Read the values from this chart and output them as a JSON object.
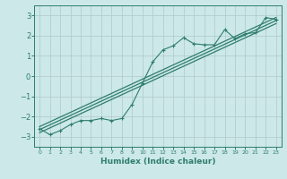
{
  "title": "",
  "xlabel": "Humidex (Indice chaleur)",
  "ylabel": "",
  "xlim": [
    -0.5,
    23.5
  ],
  "ylim": [
    -3.5,
    3.5
  ],
  "xticks": [
    0,
    1,
    2,
    3,
    4,
    5,
    6,
    7,
    8,
    9,
    10,
    11,
    12,
    13,
    14,
    15,
    16,
    17,
    18,
    19,
    20,
    21,
    22,
    23
  ],
  "yticks": [
    -3,
    -2,
    -1,
    0,
    1,
    2,
    3
  ],
  "background_color": "#cce8e8",
  "grid_color": "#b0c8c8",
  "line_color": "#2e7d6e",
  "line1_x": [
    0,
    1,
    2,
    3,
    4,
    5,
    6,
    7,
    8,
    9,
    10,
    11,
    12,
    13,
    14,
    15,
    16,
    17,
    18,
    19,
    20,
    21,
    22,
    23
  ],
  "line1_y": [
    -2.6,
    -2.9,
    -2.7,
    -2.4,
    -2.2,
    -2.2,
    -2.1,
    -2.2,
    -2.1,
    -1.4,
    -0.35,
    0.7,
    1.3,
    1.5,
    1.9,
    1.6,
    1.55,
    1.55,
    2.3,
    1.85,
    2.1,
    2.15,
    2.9,
    2.8
  ],
  "line2_x": [
    0,
    23
  ],
  "line2_y": [
    -2.65,
    2.75
  ],
  "line3_x": [
    0,
    23
  ],
  "line3_y": [
    -2.8,
    2.6
  ],
  "line4_x": [
    0,
    23
  ],
  "line4_y": [
    -2.5,
    2.9
  ]
}
